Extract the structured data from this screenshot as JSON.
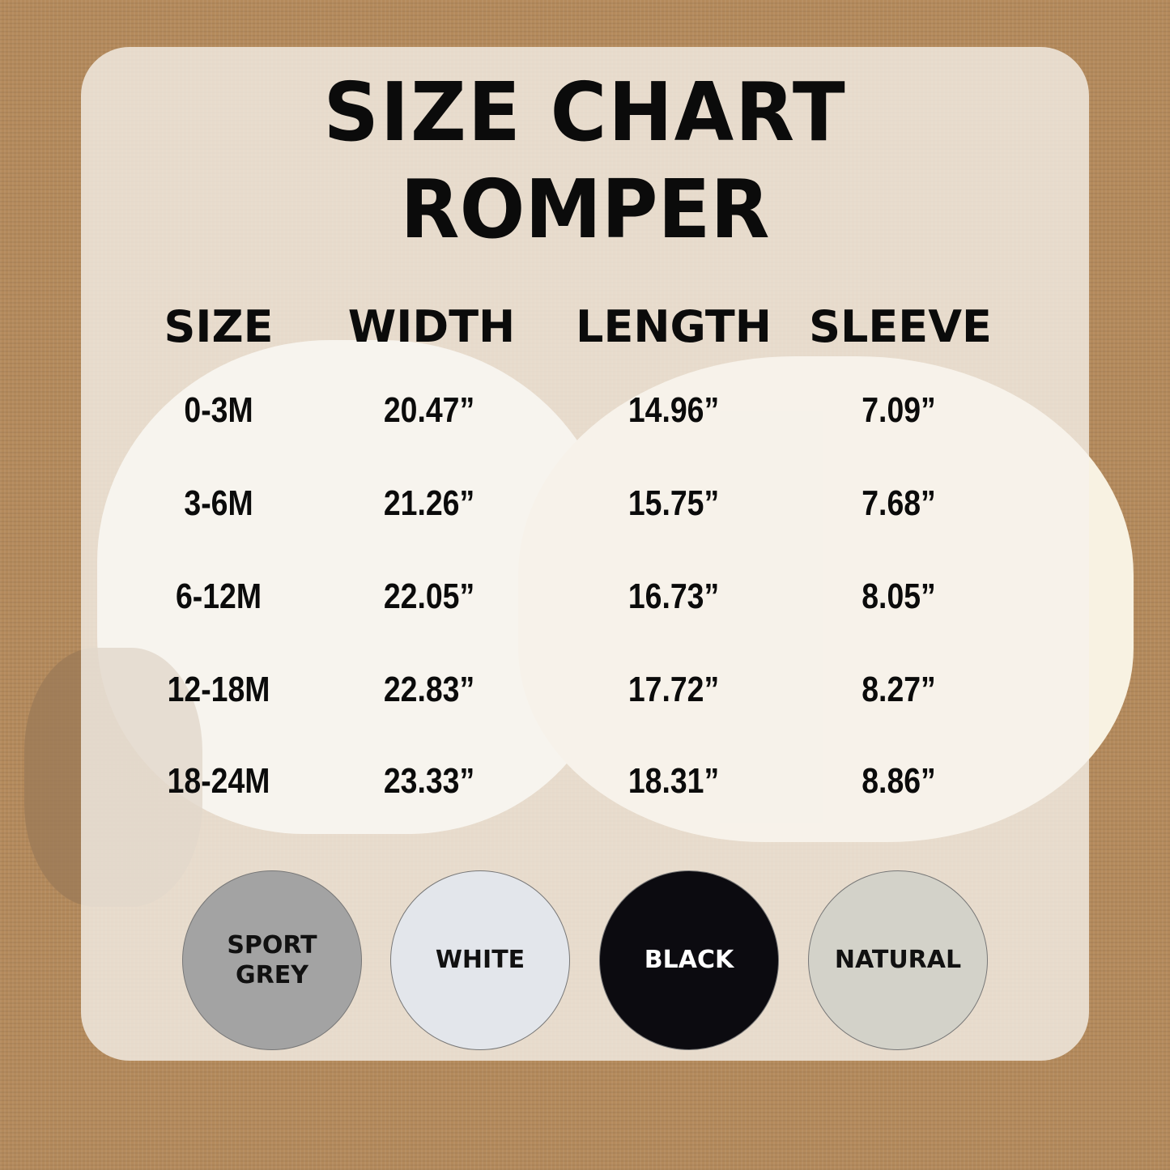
{
  "title": "SIZE CHART",
  "subtitle": "ROMPER",
  "headers": [
    "SIZE",
    "WIDTH",
    "LENGTH",
    "SLEEVE"
  ],
  "rows": [
    [
      "0-3M",
      "20.47”",
      "14.96”",
      "7.09”"
    ],
    [
      "3-6M",
      "21.26”",
      "15.75”",
      "7.68”"
    ],
    [
      "6-12M",
      "22.05”",
      "16.73”",
      "8.05”"
    ],
    [
      "12-18M",
      "22.83”",
      "17.72”",
      "8.27”"
    ],
    [
      "18-24M",
      "23.33”",
      "18.31”",
      "8.86”"
    ]
  ],
  "colors": [
    {
      "label_line1": "SPORT",
      "label_line2": "GREY",
      "hex": "#a3a3a3",
      "text": "#111111"
    },
    {
      "label_line1": "WHITE",
      "label_line2": "",
      "hex": "#e3e6eb",
      "text": "#111111"
    },
    {
      "label_line1": "BLACK",
      "label_line2": "",
      "hex": "#0c0b10",
      "text": "#ffffff"
    },
    {
      "label_line1": "NATURAL",
      "label_line2": "",
      "hex": "#d3d2c9",
      "text": "#111111"
    }
  ]
}
